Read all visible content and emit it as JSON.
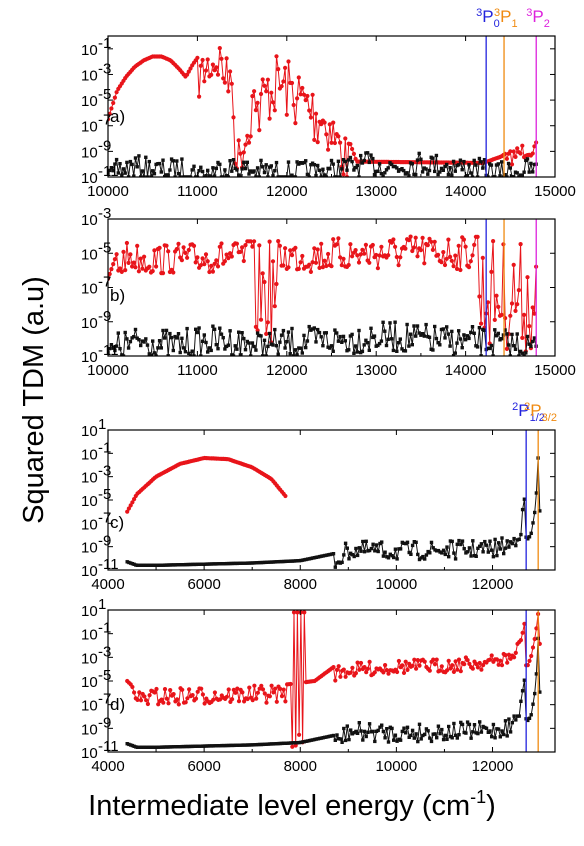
{
  "figure": {
    "ylabel": "Squared TDM (a.u)",
    "xlabel": "Intermediate level energy (cm",
    "xlabel_sup": "-1",
    "xlabel_close": ")"
  },
  "colors": {
    "red": "#e8141a",
    "black": "#111111",
    "blue": "#2222dd",
    "orange": "#f08a10",
    "magenta": "#dd22dd"
  },
  "chart_data": [
    {
      "type": "line",
      "panel": "a)",
      "ylog": true,
      "xlim": [
        10000,
        15000
      ],
      "ylim_exp": [
        -11,
        0
      ],
      "xticks": [
        10000,
        11000,
        12000,
        13000,
        14000,
        15000
      ],
      "yticks_exp": [
        -1,
        -3,
        -5,
        -7,
        -9,
        -11
      ],
      "grid": false,
      "thresholds": [
        {
          "label": "P",
          "sup": "3",
          "sub": "0",
          "x": 14230,
          "color": "#2222dd"
        },
        {
          "label": "P",
          "sup": "3",
          "sub": "1",
          "x": 14430,
          "color": "#f08a10"
        },
        {
          "label": "P",
          "sup": "3",
          "sub": "2",
          "x": 14790,
          "color": "#dd22dd"
        }
      ],
      "series": [
        {
          "color": "red",
          "points": [
            [
              10000,
              -6.5
            ],
            [
              10100,
              -4.3
            ],
            [
              10200,
              -3.2
            ],
            [
              10300,
              -2.4
            ],
            [
              10400,
              -1.9
            ],
            [
              10500,
              -1.6
            ],
            [
              10600,
              -1.6
            ],
            [
              10700,
              -1.9
            ],
            [
              10800,
              -2.6
            ],
            [
              10870,
              -3.2
            ],
            [
              10950,
              -2.2
            ],
            [
              11050,
              -1.2
            ],
            [
              11150,
              -0.4
            ],
            [
              11250,
              -0.1
            ],
            [
              11350,
              -2.0
            ],
            [
              11400,
              -4.5
            ],
            [
              11430,
              -8.0
            ],
            [
              11500,
              -7.5
            ],
            [
              11600,
              -5.0
            ],
            [
              11700,
              -3.0
            ],
            [
              11800,
              -1.8
            ],
            [
              11900,
              -1.2
            ],
            [
              12000,
              -1.6
            ],
            [
              12100,
              -2.2
            ],
            [
              12200,
              -2.8
            ],
            [
              12300,
              -3.5
            ],
            [
              12400,
              -4.5
            ],
            [
              12500,
              -5.5
            ],
            [
              12600,
              -6.8
            ],
            [
              12700,
              -8.2
            ],
            [
              12780,
              -9.8
            ],
            [
              14200,
              -9.9
            ],
            [
              14400,
              -9.4
            ],
            [
              14500,
              -8.9
            ],
            [
              14600,
              -8.5
            ],
            [
              14700,
              -8.2
            ],
            [
              14790,
              -8.3
            ]
          ],
          "osc": [
            [
              11000,
              11350,
              3.5
            ],
            [
              11400,
              11600,
              3.0
            ],
            [
              11650,
              12350,
              5.0
            ],
            [
              12350,
              12700,
              4.0
            ],
            [
              14450,
              14790,
              1.2
            ]
          ]
        },
        {
          "color": "black",
          "points": [
            [
              10000,
              -10.7
            ],
            [
              10100,
              -9.6
            ],
            [
              10300,
              -9.3
            ],
            [
              10600,
              -9.6
            ],
            [
              10800,
              -9.5
            ],
            [
              11100,
              -9.9
            ],
            [
              11300,
              -9.3
            ],
            [
              11600,
              -9.6
            ],
            [
              12000,
              -9.8
            ],
            [
              12500,
              -9.6
            ],
            [
              12900,
              -9.1
            ],
            [
              13200,
              -9.3
            ],
            [
              13500,
              -9.0
            ],
            [
              14000,
              -9.4
            ],
            [
              14400,
              -9.8
            ],
            [
              14700,
              -9.5
            ],
            [
              14790,
              -9.6
            ]
          ],
          "osc": [
            [
              10050,
              14790,
              1.8
            ]
          ]
        }
      ]
    },
    {
      "type": "line",
      "panel": "b)",
      "ylog": true,
      "xlim": [
        10000,
        15000
      ],
      "ylim_exp": [
        -11,
        -3
      ],
      "xticks": [
        10000,
        11000,
        12000,
        13000,
        14000,
        15000
      ],
      "yticks_exp": [
        -3,
        -5,
        -7,
        -9,
        -11
      ],
      "grid": false,
      "thresholds": [
        {
          "x": 14230,
          "color": "#2222dd"
        },
        {
          "x": 14430,
          "color": "#f08a10"
        },
        {
          "x": 14790,
          "color": "#dd22dd"
        }
      ],
      "series": [
        {
          "color": "red",
          "points": [
            [
              10000,
              -6.5
            ],
            [
              10100,
              -5.0
            ],
            [
              10200,
              -4.3
            ],
            [
              10500,
              -4.5
            ],
            [
              10700,
              -4.4
            ],
            [
              11000,
              -4.4
            ],
            [
              11300,
              -4.3
            ],
            [
              11600,
              -4.3
            ],
            [
              12000,
              -4.2
            ],
            [
              12500,
              -4.1
            ],
            [
              13000,
              -4.0
            ],
            [
              13500,
              -3.9
            ],
            [
              14000,
              -4.0
            ],
            [
              14300,
              -4.1
            ],
            [
              14600,
              -4.3
            ],
            [
              14790,
              -4.5
            ]
          ],
          "osc": [
            [
              10100,
              11550,
              1.8
            ],
            [
              11600,
              11900,
              6.0
            ],
            [
              11900,
              14100,
              2.0
            ],
            [
              14150,
              14790,
              6.5
            ]
          ]
        },
        {
          "color": "black",
          "points": [
            [
              10000,
              -10.8
            ],
            [
              10100,
              -9.6
            ],
            [
              10400,
              -9.2
            ],
            [
              10700,
              -9.5
            ],
            [
              11000,
              -9.3
            ],
            [
              11300,
              -9.2
            ],
            [
              11700,
              -9.5
            ],
            [
              12200,
              -9.3
            ],
            [
              12700,
              -9.1
            ],
            [
              13200,
              -9.0
            ],
            [
              13700,
              -9.2
            ],
            [
              14200,
              -9.3
            ],
            [
              14600,
              -9.5
            ],
            [
              14790,
              -9.7
            ]
          ],
          "osc": [
            [
              10050,
              14790,
              1.8
            ]
          ]
        }
      ]
    },
    {
      "type": "line",
      "panel": "c)",
      "ylog": true,
      "xlim": [
        4000,
        13300
      ],
      "ylim_exp": [
        -11,
        1
      ],
      "xticks": [
        4000,
        6000,
        8000,
        10000,
        12000
      ],
      "yticks_exp": [
        1,
        -1,
        -3,
        -5,
        -7,
        -9,
        -11
      ],
      "grid": false,
      "thresholds": [
        {
          "label": "P",
          "sup": "2",
          "sub": "1/2",
          "x": 12700,
          "color": "#2222dd"
        },
        {
          "label": "P",
          "sup": "2",
          "sub": "3/2",
          "x": 12950,
          "color": "#f08a10"
        }
      ],
      "series": [
        {
          "color": "red",
          "points": [
            [
              4400,
              -6.0
            ],
            [
              4600,
              -4.5
            ],
            [
              5000,
              -3.0
            ],
            [
              5500,
              -1.9
            ],
            [
              6000,
              -1.4
            ],
            [
              6500,
              -1.5
            ],
            [
              7000,
              -2.2
            ],
            [
              7400,
              -3.2
            ],
            [
              7700,
              -4.7
            ]
          ],
          "osc_seg": [
            [
              7750,
              8800
            ]
          ]
        },
        {
          "color": "black",
          "points": [
            [
              4400,
              -10.3
            ],
            [
              4600,
              -10.6
            ],
            [
              5000,
              -10.6
            ],
            [
              6000,
              -10.5
            ],
            [
              7000,
              -10.4
            ],
            [
              8000,
              -10.2
            ],
            [
              8700,
              -9.6
            ],
            [
              9000,
              -8.5
            ],
            [
              10000,
              -8.6
            ],
            [
              11000,
              -8.5
            ],
            [
              12000,
              -8.4
            ],
            [
              12400,
              -8.0
            ],
            [
              12600,
              -6.5
            ],
            [
              12680,
              -4.5
            ],
            [
              12700,
              -8.5
            ],
            [
              12800,
              -8.0
            ],
            [
              12900,
              -5.5
            ],
            [
              12950,
              -1.3
            ],
            [
              13000,
              -8.0
            ]
          ],
          "osc": [
            [
              8700,
              12600,
              1.6
            ]
          ]
        }
      ]
    },
    {
      "type": "line",
      "panel": "d)",
      "ylog": true,
      "xlim": [
        4000,
        13300
      ],
      "ylim_exp": [
        -11,
        1
      ],
      "xticks": [
        4000,
        6000,
        8000,
        10000,
        12000
      ],
      "yticks_exp": [
        1,
        -1,
        -3,
        -5,
        -7,
        -9,
        -11
      ],
      "grid": false,
      "thresholds": [
        {
          "x": 12700,
          "color": "#2222dd"
        },
        {
          "x": 12950,
          "color": "#f08a10"
        }
      ],
      "series": [
        {
          "color": "red",
          "points": [
            [
              4400,
              -5.0
            ],
            [
              4600,
              -5.8
            ],
            [
              5000,
              -5.6
            ],
            [
              6000,
              -5.5
            ],
            [
              7000,
              -5.4
            ],
            [
              7700,
              -5.3
            ],
            [
              8300,
              -5.0
            ],
            [
              8700,
              -3.8
            ],
            [
              9000,
              -3.5
            ],
            [
              10000,
              -3.2
            ],
            [
              11000,
              -3.1
            ],
            [
              12000,
              -2.8
            ],
            [
              12400,
              -2.4
            ],
            [
              12600,
              -1.5
            ],
            [
              12680,
              0.2
            ],
            [
              12700,
              -4.0
            ],
            [
              12800,
              -3.0
            ],
            [
              12900,
              -1.0
            ],
            [
              12950,
              0.7
            ],
            [
              13000,
              -3.0
            ]
          ],
          "osc": [
            [
              4500,
              7700,
              1.5
            ],
            [
              8700,
              12500,
              1.2
            ]
          ],
          "osc_seg": [
            [
              7800,
              8100
            ]
          ]
        },
        {
          "color": "black",
          "points": [
            [
              4400,
              -10.3
            ],
            [
              4600,
              -10.6
            ],
            [
              5000,
              -10.6
            ],
            [
              6000,
              -10.5
            ],
            [
              7000,
              -10.4
            ],
            [
              8000,
              -10.2
            ],
            [
              8700,
              -9.6
            ],
            [
              9000,
              -8.5
            ],
            [
              10000,
              -8.6
            ],
            [
              11000,
              -8.5
            ],
            [
              12000,
              -8.4
            ],
            [
              12400,
              -8.0
            ],
            [
              12600,
              -6.5
            ],
            [
              12680,
              -4.5
            ],
            [
              12700,
              -8.5
            ],
            [
              12800,
              -8.0
            ],
            [
              12900,
              -5.5
            ],
            [
              12950,
              -1.3
            ],
            [
              13000,
              -8.0
            ]
          ],
          "osc": [
            [
              8700,
              12600,
              1.6
            ]
          ]
        }
      ]
    }
  ]
}
